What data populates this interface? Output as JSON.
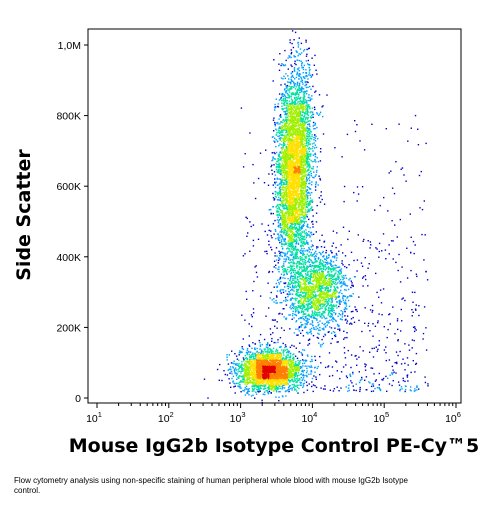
{
  "chart_data": {
    "type": "scatter",
    "subtype": "flow-cytometry-density-dot-plot",
    "xlabel": "Mouse IgG2b Isotype Control PE-Cy™5",
    "ylabel": "Side Scatter",
    "x_scale": "log",
    "xlim": [
      10,
      1000000
    ],
    "x_ticks": [
      {
        "base": "10",
        "exp": "1"
      },
      {
        "base": "10",
        "exp": "2"
      },
      {
        "base": "10",
        "exp": "3"
      },
      {
        "base": "10",
        "exp": "4"
      },
      {
        "base": "10",
        "exp": "5"
      },
      {
        "base": "10",
        "exp": "6"
      }
    ],
    "ylim": [
      0,
      1050000
    ],
    "y_ticks": [
      "0",
      "200K",
      "400K",
      "600K",
      "800K",
      "1,0M"
    ],
    "y_tick_values": [
      0,
      200000,
      400000,
      600000,
      800000,
      1000000
    ],
    "color_scale": [
      "#0000c8",
      "#00a0ff",
      "#00e0a0",
      "#a0f000",
      "#ffe000",
      "#ff8000",
      "#e00000"
    ],
    "populations": [
      {
        "x_center": 2500,
        "y_center": 80000
      },
      {
        "x_center": 5500,
        "y_center": 650000
      },
      {
        "x_center": 11000,
        "y_center": 310000
      }
    ]
  },
  "caption": "Flow cytometry analysis using non-specific staining of human peripheral whole blood with mouse IgG2b Isotype control."
}
